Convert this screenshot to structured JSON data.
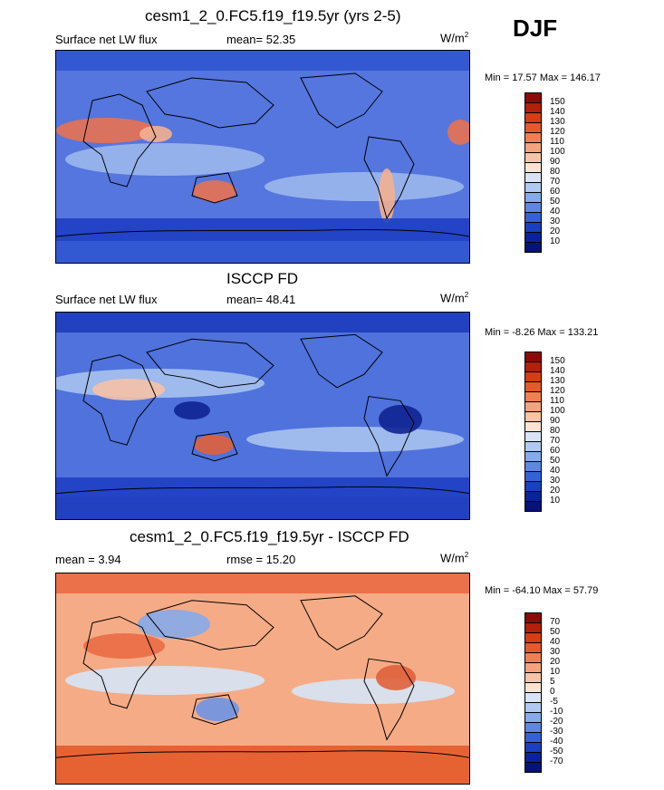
{
  "season": "DJF",
  "panels": [
    {
      "title": "cesm1_2_0.FC5.f19_f19.5yr (yrs 2-5)",
      "left_label": "Surface net LW flux",
      "center_label": "mean=  52.35",
      "units_base": "W/m",
      "units_exp": "2",
      "minmax": "Min =  17.57 Max = 146.17",
      "colorbar": {
        "labels": [
          "150",
          "140",
          "130",
          "120",
          "110",
          "100",
          "90",
          "80",
          "70",
          "60",
          "50",
          "40",
          "30",
          "20",
          "10"
        ],
        "colors": [
          "#8b0a0a",
          "#b3200c",
          "#d63d12",
          "#e65a2a",
          "#f07f52",
          "#f5a27e",
          "#f8c4a8",
          "#fbe3d3",
          "#d6e4f6",
          "#afc9f0",
          "#86aaea",
          "#5d87e2",
          "#3561d6",
          "#1a3fc0",
          "#0b229a",
          "#06127a"
        ]
      },
      "map": {
        "base": "#5576de",
        "features": [
          {
            "color": "#2f56d0",
            "label": "polar band N"
          },
          {
            "color": "#e87250",
            "label": "Sahara"
          },
          {
            "color": "#f3b090",
            "label": "Arabia"
          },
          {
            "color": "#e87250",
            "label": "Australia"
          },
          {
            "color": "#f3b090",
            "label": "South America"
          },
          {
            "color": "#1e3fc4",
            "label": "southern ocean"
          },
          {
            "color": "#9cb8ec",
            "label": "subtropics"
          }
        ]
      }
    },
    {
      "title": "ISCCP FD",
      "left_label": "Surface net LW flux",
      "center_label": "mean=  48.41",
      "units_base": "W/m",
      "units_exp": "2",
      "minmax": "Min =  -8.26 Max = 133.21",
      "colorbar": {
        "labels": [
          "150",
          "140",
          "130",
          "120",
          "110",
          "100",
          "90",
          "80",
          "70",
          "60",
          "50",
          "40",
          "30",
          "20",
          "10"
        ],
        "colors": [
          "#8b0a0a",
          "#b3200c",
          "#d63d12",
          "#e65a2a",
          "#f07f52",
          "#f5a27e",
          "#f8c4a8",
          "#fbe3d3",
          "#d6e4f6",
          "#afc9f0",
          "#86aaea",
          "#5d87e2",
          "#3561d6",
          "#1a3fc0",
          "#0b229a",
          "#06127a"
        ]
      },
      "map": {
        "base": "#4f72dc",
        "features": [
          {
            "color": "#1d3cbe",
            "label": "polar band N"
          },
          {
            "color": "#f5c2a6",
            "label": "Sahara"
          },
          {
            "color": "#e0603a",
            "label": "Australia"
          },
          {
            "color": "#0f2492",
            "label": "Amazon"
          },
          {
            "color": "#0f2492",
            "label": "Maritime continent"
          },
          {
            "color": "#1e3fc4",
            "label": "southern ocean"
          },
          {
            "color": "#a7c2ee",
            "label": "subtropics"
          }
        ]
      }
    },
    {
      "title": "cesm1_2_0.FC5.f19_f19.5yr - ISCCP FD",
      "left_label": "mean =  3.94",
      "center_label": "rmse =  15.20",
      "units_base": "W/m",
      "units_exp": "2",
      "minmax": "Min = -64.10 Max =  57.79",
      "colorbar": {
        "labels": [
          "70",
          "50",
          "40",
          "30",
          "20",
          "10",
          "5",
          "0",
          "-5",
          "-10",
          "-20",
          "-30",
          "-40",
          "-50",
          "-70"
        ],
        "colors": [
          "#8b0a0a",
          "#b3200c",
          "#d63d12",
          "#e65a2a",
          "#f07f52",
          "#f5a27e",
          "#f8c4a8",
          "#fbe3d3",
          "#d6e4f6",
          "#afc9f0",
          "#86aaea",
          "#5d87e2",
          "#3561d6",
          "#1a3fc0",
          "#0b229a",
          "#06127a"
        ]
      },
      "map": {
        "base": "#f5ab86",
        "features": [
          {
            "color": "#e96a42",
            "label": "arctic"
          },
          {
            "color": "#ea6c44",
            "label": "Sahara"
          },
          {
            "color": "#6f93e4",
            "label": "Australia"
          },
          {
            "color": "#e0603a",
            "label": "Amazon"
          },
          {
            "color": "#86aaea",
            "label": "central Asia"
          },
          {
            "color": "#e65a2a",
            "label": "southern ocean"
          },
          {
            "color": "#d6e4f6",
            "label": "tropical ocean"
          }
        ]
      }
    }
  ]
}
